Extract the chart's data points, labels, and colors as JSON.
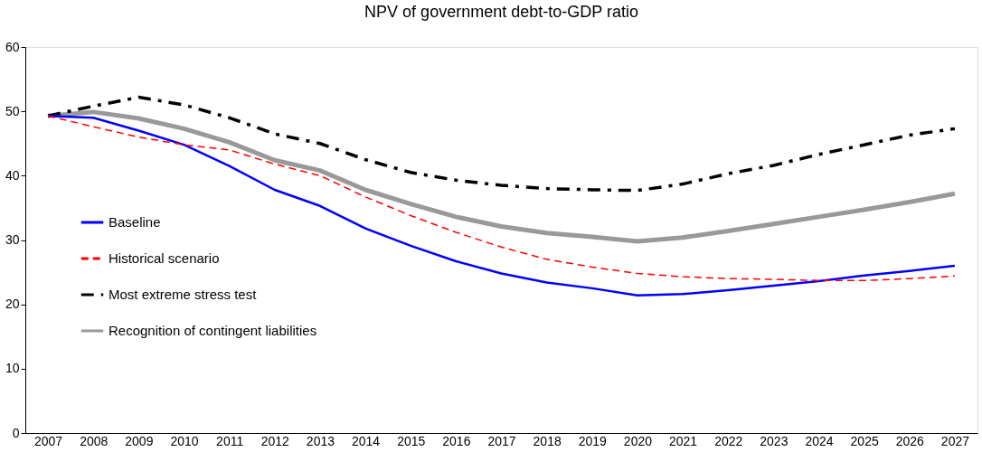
{
  "chart_data": {
    "type": "line",
    "title": "NPV of government debt-to-GDP ratio",
    "categories": [
      "2007",
      "2008",
      "2009",
      "2010",
      "2011",
      "2012",
      "2013",
      "2014",
      "2015",
      "2016",
      "2017",
      "2018",
      "2019",
      "2020",
      "2021",
      "2022",
      "2023",
      "2024",
      "2025",
      "2026",
      "2027"
    ],
    "series": [
      {
        "name": "Baseline",
        "color": "#0000ff",
        "line_style": "solid",
        "values": [
          49.3,
          49,
          47,
          44.8,
          41.5,
          37.8,
          35.3,
          31.8,
          29.1,
          26.7,
          24.8,
          23.4,
          22.5,
          21.4,
          21.6,
          22.2,
          22.9,
          23.6,
          24.5,
          25.2,
          26
        ]
      },
      {
        "name": "Historical scenario",
        "color": "#ff0000",
        "line_style": "dashed",
        "values": [
          49.3,
          47.6,
          46,
          44.8,
          44,
          41.8,
          40,
          36.7,
          33.8,
          31.2,
          28.9,
          27,
          25.8,
          24.8,
          24.3,
          24,
          23.9,
          23.7,
          23.7,
          24,
          24.4
        ]
      },
      {
        "name": "Most extreme stress test",
        "color": "#000000",
        "line_style": "dashdot",
        "values": [
          49.3,
          50.8,
          52.2,
          51,
          49,
          46.5,
          45,
          42.5,
          40.5,
          39.3,
          38.5,
          38,
          37.8,
          37.7,
          38.7,
          40.3,
          41.6,
          43.3,
          44.8,
          46.3,
          47.3
        ]
      },
      {
        "name": "Recognition of contingent liabilities",
        "color": "#999999",
        "line_style": "solid",
        "values": [
          49.3,
          49.9,
          48.9,
          47.3,
          45.2,
          42.4,
          40.8,
          37.8,
          35.6,
          33.6,
          32.1,
          31.1,
          30.5,
          29.8,
          30.4,
          31.4,
          32.5,
          33.6,
          34.7,
          35.9,
          37.2
        ]
      }
    ],
    "ylim": [
      0,
      60
    ],
    "yticks": [
      0,
      10,
      20,
      30,
      40,
      50,
      60
    ],
    "grid": false,
    "legend": "bottom left"
  }
}
